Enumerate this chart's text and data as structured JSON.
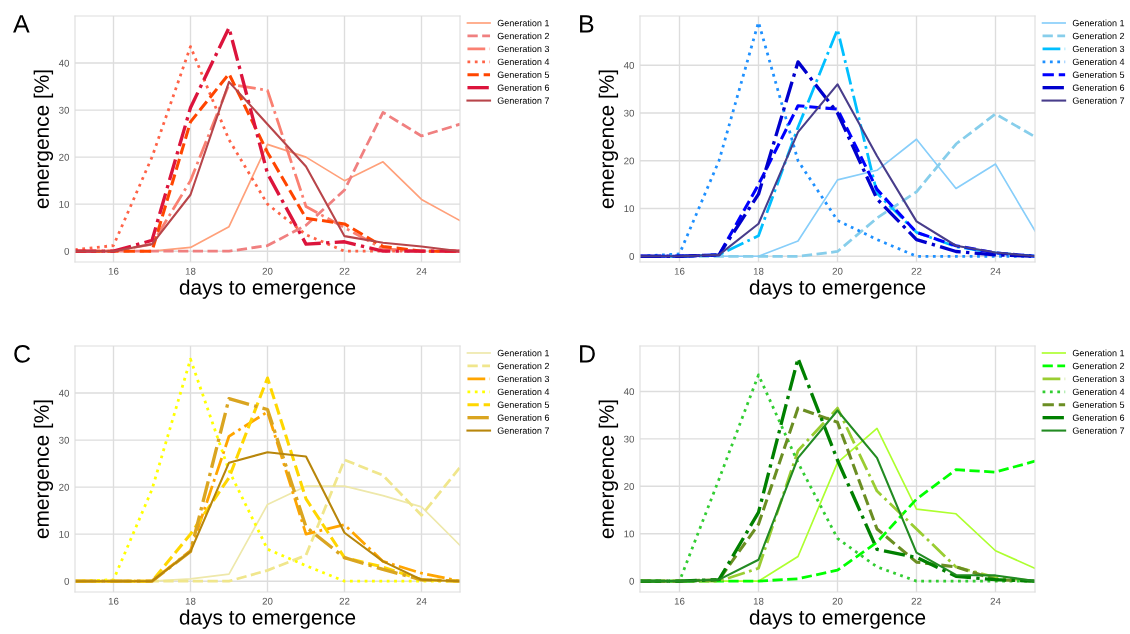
{
  "chart_data": [
    {
      "type": "line",
      "title": "A",
      "xlabel": "days to emergence",
      "ylabel": "emergence [%]",
      "x": [
        15,
        16,
        17,
        18,
        19,
        20,
        21,
        22,
        23,
        24,
        25
      ],
      "xlim": [
        15,
        25
      ],
      "xticks": [
        16,
        18,
        20,
        22,
        24
      ],
      "ylim": [
        -2.3,
        50
      ],
      "yticks": [
        0,
        10,
        20,
        30,
        40
      ],
      "grid": true,
      "legend": "right",
      "marker": "none",
      "series": [
        {
          "name": "Generation 1",
          "color": "#ffa07a",
          "line_style": "solid",
          "values": [
            0,
            0,
            0,
            0.8,
            5.2,
            22.7,
            20,
            15,
            19,
            11,
            6.5
          ]
        },
        {
          "name": "Generation 2",
          "color": "#f08080",
          "line_style": "dashed",
          "values": [
            0,
            0,
            0,
            0,
            0,
            1.2,
            5.5,
            13,
            29.5,
            24.5,
            27
          ]
        },
        {
          "name": "Generation 3",
          "color": "#fa8072",
          "line_style": "dashdot",
          "values": [
            0,
            0,
            1.5,
            15,
            35.5,
            34.2,
            9.5,
            5,
            0.5,
            0,
            0
          ]
        },
        {
          "name": "Generation 4",
          "color": "#ff6347",
          "line_style": "dotted",
          "values": [
            0.3,
            1.2,
            20,
            43.5,
            23.7,
            10,
            3.5,
            0,
            0,
            0,
            0
          ]
        },
        {
          "name": "Generation 5",
          "color": "#ff4500",
          "line_style": "dashed",
          "values": [
            0,
            0,
            0,
            27.5,
            37.7,
            21,
            7,
            5.8,
            1,
            0,
            0
          ]
        },
        {
          "name": "Generation 6",
          "color": "#dc143c",
          "line_style": "dashdot",
          "values": [
            0,
            0,
            2.3,
            30.5,
            47.5,
            16.5,
            1.5,
            2,
            0,
            0,
            0
          ]
        },
        {
          "name": "Generation 7",
          "color": "#b8454a",
          "line_style": "solid",
          "values": [
            0,
            0,
            1.5,
            12,
            36,
            27,
            18,
            3.2,
            1.8,
            1,
            0
          ]
        }
      ]
    },
    {
      "type": "line",
      "title": "B",
      "xlabel": "days to emergence",
      "ylabel": "emergence [%]",
      "x": [
        15,
        16,
        17,
        18,
        19,
        20,
        21,
        22,
        23,
        24,
        25
      ],
      "xlim": [
        15,
        25
      ],
      "xticks": [
        16,
        18,
        20,
        22,
        24
      ],
      "ylim": [
        -1.2,
        50.3
      ],
      "yticks": [
        0,
        10,
        20,
        30,
        40
      ],
      "grid": true,
      "legend": "right",
      "marker": "none",
      "series": [
        {
          "name": "Generation 1",
          "color": "#87cefa",
          "line_style": "solid",
          "values": [
            0,
            0,
            0,
            0,
            3.2,
            16,
            18,
            24.5,
            14.2,
            19.3,
            5.3
          ]
        },
        {
          "name": "Generation 2",
          "color": "#87ceeb",
          "line_style": "dashed",
          "values": [
            0,
            0,
            0,
            0,
            0,
            1,
            8,
            13.5,
            23.5,
            29.8,
            25
          ]
        },
        {
          "name": "Generation 3",
          "color": "#00bfff",
          "line_style": "dashdot",
          "values": [
            0,
            0,
            0.3,
            4.3,
            27,
            47.5,
            13.2,
            5,
            2,
            0.7,
            0
          ]
        },
        {
          "name": "Generation 4",
          "color": "#1e90ff",
          "line_style": "dotted",
          "values": [
            0,
            0.5,
            20,
            49,
            20,
            7.5,
            3.5,
            0,
            0,
            0,
            0
          ]
        },
        {
          "name": "Generation 5",
          "color": "#0000ff",
          "line_style": "dashed",
          "values": [
            0,
            0,
            0.3,
            15,
            31.5,
            30.8,
            14,
            5,
            2.2,
            0.7,
            0
          ]
        },
        {
          "name": "Generation 6",
          "color": "#0000cd",
          "line_style": "dashdot",
          "values": [
            0,
            0,
            0.3,
            13,
            40.7,
            30,
            12,
            3.5,
            1,
            0.3,
            0
          ]
        },
        {
          "name": "Generation 7",
          "color": "#483d8b",
          "line_style": "solid",
          "values": [
            0,
            0,
            0.3,
            6.8,
            26,
            36,
            21,
            7.3,
            2.2,
            0.8,
            0
          ]
        }
      ]
    },
    {
      "type": "line",
      "title": "C",
      "xlabel": "days to emergence",
      "ylabel": "emergence [%]",
      "x": [
        15,
        16,
        17,
        18,
        19,
        20,
        21,
        22,
        23,
        24,
        25
      ],
      "xlim": [
        15,
        25
      ],
      "xticks": [
        16,
        18,
        20,
        22,
        24
      ],
      "ylim": [
        -2.3,
        50
      ],
      "yticks": [
        0,
        10,
        20,
        30,
        40
      ],
      "grid": true,
      "legend": "right",
      "marker": "none",
      "series": [
        {
          "name": "Generation 1",
          "color": "#eee8aa",
          "line_style": "solid",
          "values": [
            0,
            0,
            0,
            0.5,
            1.5,
            16.3,
            20.2,
            20.2,
            18.2,
            15.8,
            7.6
          ]
        },
        {
          "name": "Generation 2",
          "color": "#f0e68c",
          "line_style": "dashed",
          "values": [
            0,
            0,
            0,
            0,
            0,
            2.3,
            5.5,
            25.8,
            22.5,
            14,
            24.2
          ]
        },
        {
          "name": "Generation 3",
          "color": "#ffa500",
          "line_style": "dashdot",
          "values": [
            0,
            0,
            0,
            6.5,
            30.8,
            36,
            10,
            12,
            4.2,
            1.7,
            0
          ]
        },
        {
          "name": "Generation 4",
          "color": "#ffff00",
          "line_style": "dotted",
          "values": [
            0,
            0.3,
            19.5,
            47.2,
            23.5,
            6.8,
            3.3,
            0,
            0,
            0,
            0
          ]
        },
        {
          "name": "Generation 5",
          "color": "#ffd700",
          "line_style": "dashed",
          "values": [
            0,
            0,
            0,
            10,
            22,
            43.2,
            17.5,
            5,
            3,
            0.3,
            0
          ]
        },
        {
          "name": "Generation 6",
          "color": "#daa520",
          "line_style": "dashdot",
          "values": [
            0,
            0,
            0,
            6.3,
            38.8,
            36.5,
            11.5,
            5,
            2.5,
            0.3,
            0
          ]
        },
        {
          "name": "Generation 7",
          "color": "#b8860b",
          "line_style": "solid",
          "values": [
            0,
            0,
            0,
            6.3,
            25.2,
            27.4,
            26.5,
            10.3,
            4.2,
            0.3,
            0
          ]
        }
      ]
    },
    {
      "type": "line",
      "title": "D",
      "xlabel": "days to emergence",
      "ylabel": "emergence [%]",
      "x": [
        15,
        16,
        17,
        18,
        19,
        20,
        21,
        22,
        23,
        24,
        25
      ],
      "xlim": [
        15,
        25
      ],
      "xticks": [
        16,
        18,
        20,
        22,
        24
      ],
      "ylim": [
        -2.3,
        49.6
      ],
      "yticks": [
        0,
        10,
        20,
        30,
        40
      ],
      "grid": true,
      "legend": "right",
      "marker": "none",
      "series": [
        {
          "name": "Generation 1",
          "color": "#adff2f",
          "line_style": "solid",
          "values": [
            0,
            0,
            0,
            0,
            5.2,
            25,
            32.2,
            15.2,
            14.2,
            6.4,
            2.7
          ]
        },
        {
          "name": "Generation 2",
          "color": "#00ff00",
          "line_style": "dashed",
          "values": [
            0,
            0,
            0,
            0,
            0.5,
            2.3,
            8.2,
            17.3,
            23.5,
            23,
            25.3
          ]
        },
        {
          "name": "Generation 3",
          "color": "#9acd32",
          "line_style": "dashdot",
          "values": [
            0,
            0,
            0,
            2.7,
            27.5,
            36.5,
            19,
            11,
            3,
            0.8,
            0
          ]
        },
        {
          "name": "Generation 4",
          "color": "#32cd32",
          "line_style": "dotted",
          "values": [
            0,
            0,
            21.5,
            43.5,
            25,
            9,
            3,
            0,
            0,
            0,
            0
          ]
        },
        {
          "name": "Generation 5",
          "color": "#6b8e23",
          "line_style": "dashed",
          "values": [
            0,
            0,
            0.3,
            12,
            36.5,
            33.5,
            11,
            4,
            3,
            0.3,
            0
          ]
        },
        {
          "name": "Generation 6",
          "color": "#008000",
          "line_style": "dashdot",
          "values": [
            0,
            0,
            0.3,
            14.5,
            47,
            25.5,
            6.7,
            5,
            1,
            0.3,
            0
          ]
        },
        {
          "name": "Generation 7",
          "color": "#228b22",
          "line_style": "solid",
          "values": [
            0,
            0,
            0.3,
            4.5,
            26,
            36,
            26,
            6,
            1.3,
            1.2,
            0
          ]
        }
      ]
    }
  ]
}
